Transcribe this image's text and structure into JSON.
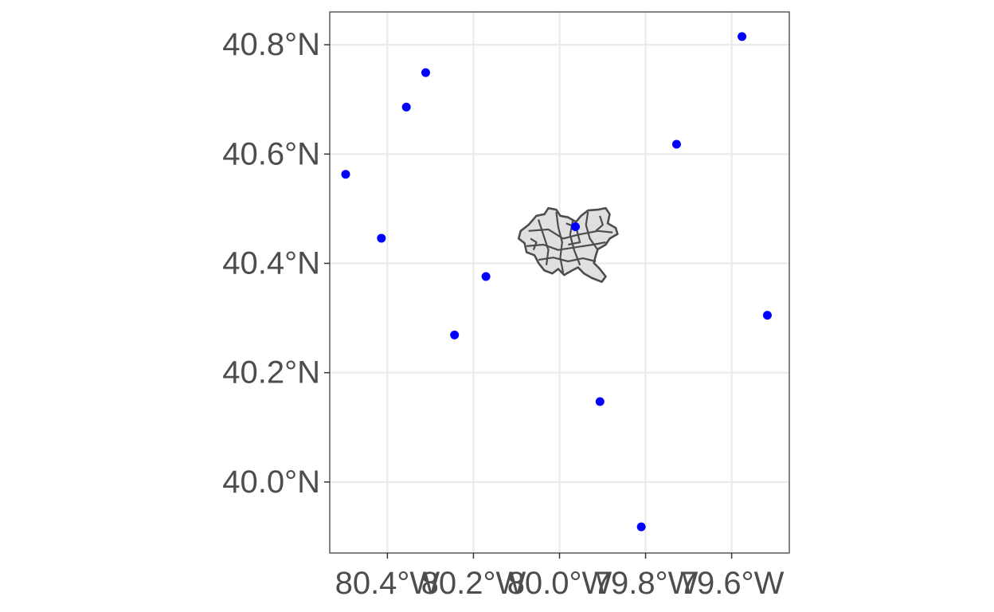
{
  "chart_data": {
    "type": "scatter",
    "title": "",
    "xlabel": "",
    "ylabel": "",
    "xlim": [
      -80.534,
      -79.466
    ],
    "ylim": [
      39.87,
      40.86
    ],
    "grid": true,
    "x_ticks": [
      {
        "value": -80.4,
        "label": "80.4°W"
      },
      {
        "value": -80.2,
        "label": "80.2°W"
      },
      {
        "value": -80.0,
        "label": "80.0°W"
      },
      {
        "value": -79.8,
        "label": "79.8°W"
      },
      {
        "value": -79.6,
        "label": "79.6°W"
      }
    ],
    "y_ticks": [
      {
        "value": 40.0,
        "label": "40.0°N"
      },
      {
        "value": 40.2,
        "label": "40.2°N"
      },
      {
        "value": 40.4,
        "label": "40.4°N"
      },
      {
        "value": 40.6,
        "label": "40.6°N"
      },
      {
        "value": 40.8,
        "label": "40.8°N"
      }
    ],
    "points": [
      {
        "lon": -80.497,
        "lat": 40.563
      },
      {
        "lon": -80.414,
        "lat": 40.446
      },
      {
        "lon": -80.356,
        "lat": 40.686
      },
      {
        "lon": -80.311,
        "lat": 40.749
      },
      {
        "lon": -80.244,
        "lat": 40.269
      },
      {
        "lon": -80.171,
        "lat": 40.376
      },
      {
        "lon": -79.963,
        "lat": 40.467
      },
      {
        "lon": -79.906,
        "lat": 40.147
      },
      {
        "lon": -79.81,
        "lat": 39.918
      },
      {
        "lon": -79.728,
        "lat": 40.618
      },
      {
        "lon": -79.576,
        "lat": 40.815
      },
      {
        "lon": -79.517,
        "lat": 40.305
      }
    ],
    "polygon_region": {
      "lon_range": [
        -80.095,
        -79.865
      ],
      "lat_range": [
        40.362,
        40.501
      ]
    },
    "colors": {
      "points": "#0000ff",
      "polygon_fill": "#e0e0e0",
      "polygon_stroke": "#4d4d4d",
      "grid": "#ebebeb",
      "panel_border": "#333333",
      "text": "#4d4d4d"
    }
  }
}
